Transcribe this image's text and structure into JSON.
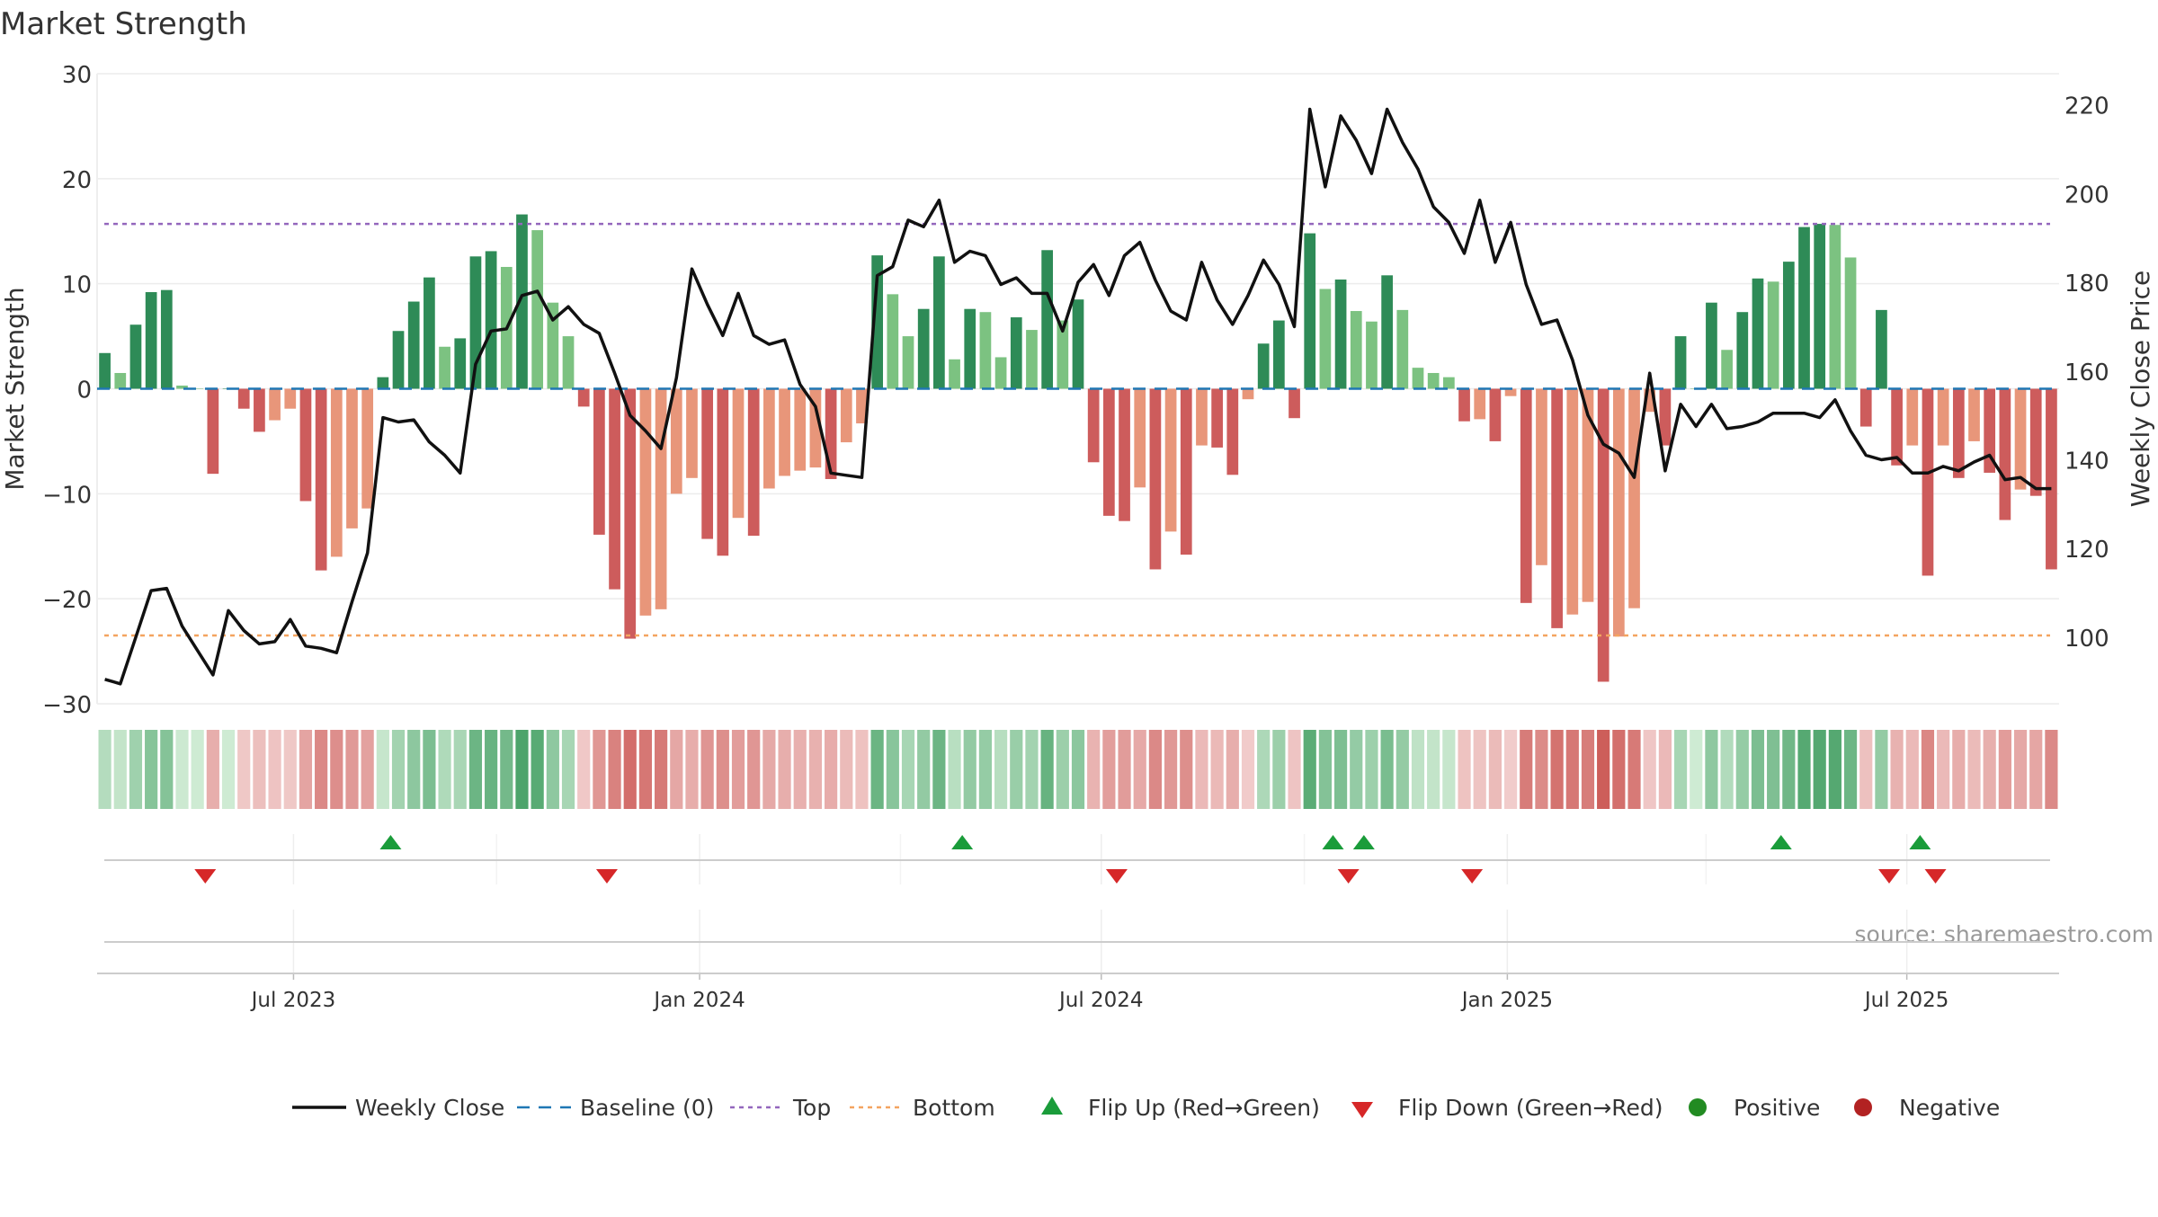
{
  "chart_data": {
    "type": "bar+line",
    "title": "Market Strength",
    "ylabel_left": "Market Strength",
    "ylabel_right": "Weekly Close Price",
    "ylim_left": [
      -30,
      30
    ],
    "yticks_left": [
      30,
      20,
      10,
      0,
      -10,
      -20,
      -30
    ],
    "ytick_labels_left": [
      "30",
      "20",
      "10",
      "0",
      "−10",
      "−20",
      "−30"
    ],
    "ylim_right": [
      85,
      227
    ],
    "yticks_right": [
      220,
      200,
      180,
      160,
      140,
      120,
      100
    ],
    "ytick_labels_right": [
      "220",
      "200",
      "180",
      "160",
      "140",
      "120",
      "100"
    ],
    "x_start": "2023-04-03",
    "x_end": "2025-09-08",
    "x_ticks": [
      {
        "date": "2023-07-01",
        "label": "Jul 2023"
      },
      {
        "date": "2024-01-01",
        "label": "Jan 2024"
      },
      {
        "date": "2024-07-01",
        "label": "Jul 2024"
      },
      {
        "date": "2025-01-01",
        "label": "Jan 2025"
      },
      {
        "date": "2025-07-01",
        "label": "Jul 2025"
      }
    ],
    "top_level": 15.7,
    "bottom_level": -23.5,
    "strength": [
      3.4,
      1.5,
      6.1,
      9.2,
      9.4,
      0.3,
      0,
      -8.1,
      0,
      -1.9,
      -4.1,
      -3.0,
      -1.9,
      -10.7,
      -17.3,
      -16.0,
      -13.3,
      -11.4,
      1.1,
      5.5,
      8.3,
      10.6,
      4.0,
      4.8,
      12.6,
      13.1,
      11.6,
      16.6,
      15.1,
      8.2,
      5.0,
      -1.7,
      -13.9,
      -19.1,
      -23.8,
      -21.6,
      -21.0,
      -10.0,
      -8.5,
      -14.3,
      -15.9,
      -12.3,
      -14.0,
      -9.5,
      -8.3,
      -7.8,
      -7.5,
      -8.6,
      -5.1,
      -3.3,
      12.7,
      9.0,
      5.0,
      7.6,
      12.6,
      2.8,
      7.6,
      7.3,
      3.0,
      6.8,
      5.6,
      13.2,
      6.5,
      8.5,
      -7.0,
      -12.1,
      -12.6,
      -9.4,
      -17.2,
      -13.6,
      -15.8,
      -5.4,
      -5.6,
      -8.2,
      -1.0,
      4.3,
      6.5,
      -2.8,
      14.8,
      9.5,
      10.4,
      7.4,
      6.4,
      10.8,
      7.5,
      2.0,
      1.5,
      1.1,
      -3.1,
      -2.9,
      -5.0,
      -0.7,
      -20.4,
      -16.8,
      -22.8,
      -21.5,
      -20.3,
      -27.9,
      -23.6,
      -20.9,
      -2.2,
      -5.4,
      5.0,
      0,
      8.2,
      3.7,
      7.3,
      10.5,
      10.2,
      12.1,
      15.4,
      15.7,
      15.6,
      12.5,
      -3.6,
      7.5,
      -7.3,
      -5.4,
      -17.8,
      -5.4,
      -8.5,
      -5.0,
      -8.0,
      -12.5,
      -9.6,
      -10.2,
      -17.2
    ],
    "price": [
      90.5,
      89.5,
      100.0,
      110.5,
      111.0,
      102.5,
      97.0,
      91.5,
      106.0,
      101.5,
      98.5,
      99.0,
      104.0,
      98.0,
      97.5,
      96.5,
      108.0,
      119.0,
      149.5,
      148.5,
      149.0,
      144.0,
      141.0,
      137.0,
      161.5,
      169.0,
      169.5,
      177.0,
      178.0,
      171.5,
      174.5,
      170.5,
      168.5,
      159.5,
      150.0,
      146.5,
      142.5,
      158.5,
      183.0,
      175.0,
      168.0,
      177.5,
      168.0,
      166.0,
      167.0,
      157.0,
      152.0,
      137.0,
      136.5,
      136.0,
      181.5,
      183.5,
      194.0,
      192.5,
      198.5,
      184.5,
      187.0,
      186.0,
      179.5,
      181.0,
      177.5,
      177.5,
      169.0,
      180.0,
      184.0,
      177.0,
      186.0,
      189.0,
      180.5,
      173.5,
      171.5,
      184.5,
      176.0,
      170.5,
      177.0,
      185.0,
      179.5,
      170.0,
      219.0,
      201.5,
      217.5,
      212.0,
      204.5,
      219.0,
      211.5,
      205.5,
      197.0,
      193.5,
      186.5,
      198.5,
      184.5,
      193.5,
      179.5,
      170.5,
      171.5,
      162.5,
      150.0,
      143.5,
      141.5,
      136.0,
      159.5,
      137.5,
      152.5,
      147.5,
      152.5,
      147.0,
      147.5,
      148.5,
      150.5,
      150.5,
      150.5,
      149.5,
      153.5,
      146.5,
      141.0,
      140.0,
      140.5,
      137.0,
      137.0,
      138.5,
      137.5,
      139.5,
      141.0,
      135.5,
      136.0,
      133.5,
      133.5
    ],
    "colors": {
      "pos_strong": "#2e8b57",
      "pos_light": "#7cc281",
      "neg_strong": "#cd5c5c",
      "neg_light": "#e8967a",
      "price_line": "#111111",
      "baseline": "#1f77b4",
      "top_line": "#9467bd",
      "bottom_line": "#f4a460",
      "flip_up": "#1a9c3a",
      "flip_down": "#d62728",
      "positive_dot": "#228b22",
      "negative_dot": "#b22222"
    },
    "flip_up_dates": [
      "2023-08-14",
      "2024-04-29",
      "2024-10-14",
      "2024-10-28",
      "2025-05-05",
      "2025-07-07"
    ],
    "flip_down_dates": [
      "2023-05-22",
      "2023-11-20",
      "2024-07-08",
      "2024-10-21",
      "2024-12-16",
      "2025-06-23",
      "2025-07-14"
    ],
    "legend": [
      {
        "label": "Weekly Close",
        "symbol": "line"
      },
      {
        "label": "Baseline (0)",
        "symbol": "dash"
      },
      {
        "label": "Top",
        "symbol": "dot-purple"
      },
      {
        "label": "Bottom",
        "symbol": "dot-orange"
      },
      {
        "label": "Flip Up (Red→Green)",
        "symbol": "triangle-up"
      },
      {
        "label": "Flip Down (Green→Red)",
        "symbol": "triangle-down"
      },
      {
        "label": "Positive",
        "symbol": "circle-green"
      },
      {
        "label": "Negative",
        "symbol": "circle-red"
      }
    ],
    "source": "source: sharemaestro.com"
  }
}
